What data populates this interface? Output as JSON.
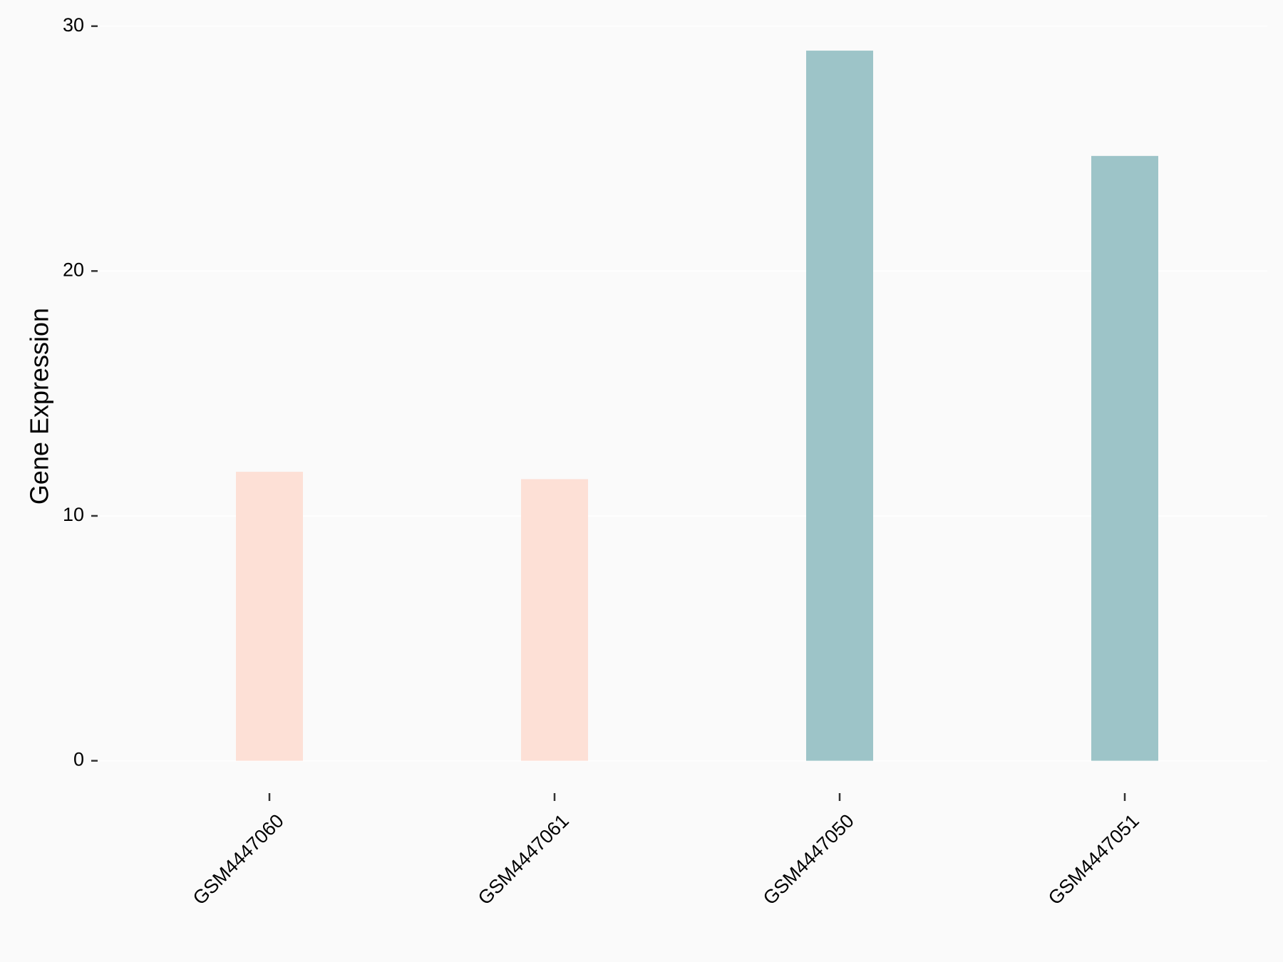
{
  "chart_data": {
    "type": "bar",
    "y_label": "Gene Expression",
    "categories": [
      "GSM4447060",
      "GSM4447061",
      "GSM4447050",
      "GSM4447051"
    ],
    "values": [
      11.8,
      11.5,
      29.0,
      24.7
    ],
    "colors": [
      "#fde0d6",
      "#fde0d6",
      "#9dc4c8",
      "#9dc4c8"
    ],
    "ylim": [
      0,
      30
    ],
    "yticks": [
      0,
      10,
      20,
      30
    ],
    "grid": true
  }
}
